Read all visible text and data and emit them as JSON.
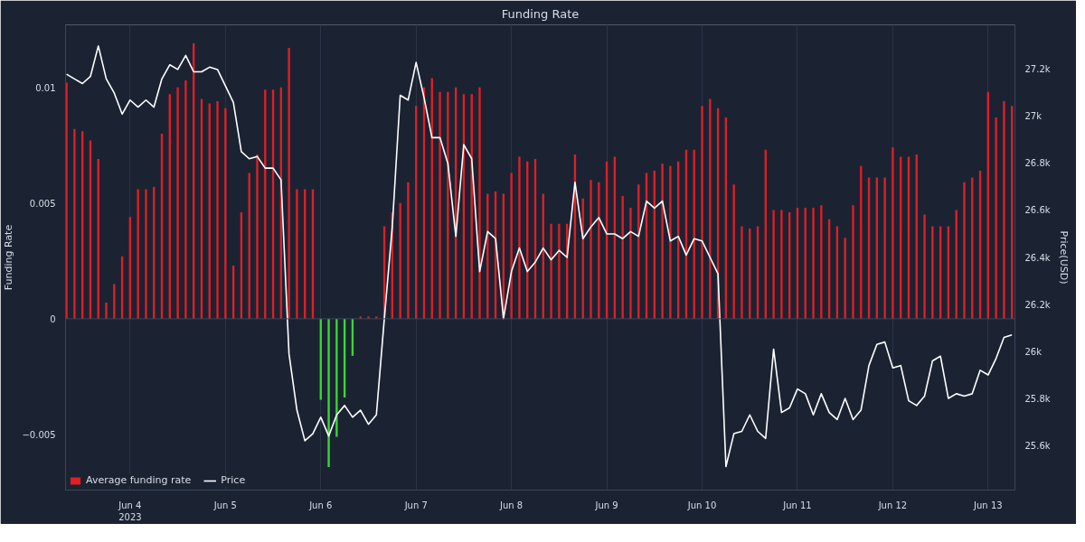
{
  "chart_data": {
    "type": "bar",
    "title": "Funding Rate",
    "ylabel": "Funding Rate",
    "y2label": "Price(USD)",
    "x": [
      "2023-06-03T08:00",
      "2023-06-03T10:00",
      "2023-06-03T12:00",
      "2023-06-03T14:00",
      "2023-06-03T16:00",
      "2023-06-03T18:00",
      "2023-06-03T20:00",
      "2023-06-03T22:00",
      "2023-06-04T00:00",
      "2023-06-04T02:00",
      "2023-06-04T04:00",
      "2023-06-04T06:00",
      "2023-06-04T08:00",
      "2023-06-04T10:00",
      "2023-06-04T12:00",
      "2023-06-04T14:00",
      "2023-06-04T16:00",
      "2023-06-04T18:00",
      "2023-06-04T20:00",
      "2023-06-04T22:00",
      "2023-06-05T00:00",
      "2023-06-05T02:00",
      "2023-06-05T04:00",
      "2023-06-05T06:00",
      "2023-06-05T08:00",
      "2023-06-05T10:00",
      "2023-06-05T12:00",
      "2023-06-05T14:00",
      "2023-06-05T16:00",
      "2023-06-05T18:00",
      "2023-06-05T20:00",
      "2023-06-05T22:00",
      "2023-06-06T00:00",
      "2023-06-06T02:00",
      "2023-06-06T04:00",
      "2023-06-06T06:00",
      "2023-06-06T08:00",
      "2023-06-06T10:00",
      "2023-06-06T12:00",
      "2023-06-06T14:00",
      "2023-06-06T16:00",
      "2023-06-06T18:00",
      "2023-06-06T20:00",
      "2023-06-06T22:00",
      "2023-06-07T00:00",
      "2023-06-07T02:00",
      "2023-06-07T04:00",
      "2023-06-07T06:00",
      "2023-06-07T08:00",
      "2023-06-07T10:00",
      "2023-06-07T12:00",
      "2023-06-07T14:00",
      "2023-06-07T16:00",
      "2023-06-07T18:00",
      "2023-06-07T20:00",
      "2023-06-07T22:00",
      "2023-06-08T00:00",
      "2023-06-08T02:00",
      "2023-06-08T04:00",
      "2023-06-08T06:00",
      "2023-06-08T08:00",
      "2023-06-08T10:00",
      "2023-06-08T12:00",
      "2023-06-08T14:00",
      "2023-06-08T16:00",
      "2023-06-08T18:00",
      "2023-06-08T20:00",
      "2023-06-08T22:00",
      "2023-06-09T00:00",
      "2023-06-09T02:00",
      "2023-06-09T04:00",
      "2023-06-09T06:00",
      "2023-06-09T08:00",
      "2023-06-09T10:00",
      "2023-06-09T12:00",
      "2023-06-09T14:00",
      "2023-06-09T16:00",
      "2023-06-09T18:00",
      "2023-06-09T20:00",
      "2023-06-09T22:00",
      "2023-06-10T00:00",
      "2023-06-10T02:00",
      "2023-06-10T04:00",
      "2023-06-10T06:00",
      "2023-06-10T08:00",
      "2023-06-10T10:00",
      "2023-06-10T12:00",
      "2023-06-10T14:00",
      "2023-06-10T16:00",
      "2023-06-10T18:00",
      "2023-06-10T20:00",
      "2023-06-10T22:00",
      "2023-06-11T00:00",
      "2023-06-11T02:00",
      "2023-06-11T04:00",
      "2023-06-11T06:00",
      "2023-06-11T08:00",
      "2023-06-11T10:00",
      "2023-06-11T12:00",
      "2023-06-11T14:00",
      "2023-06-11T16:00",
      "2023-06-11T18:00",
      "2023-06-11T20:00",
      "2023-06-11T22:00",
      "2023-06-12T00:00",
      "2023-06-12T02:00",
      "2023-06-12T04:00",
      "2023-06-12T06:00",
      "2023-06-12T08:00",
      "2023-06-12T10:00",
      "2023-06-12T12:00",
      "2023-06-12T14:00",
      "2023-06-12T16:00",
      "2023-06-12T18:00",
      "2023-06-12T20:00",
      "2023-06-12T22:00",
      "2023-06-13T00:00",
      "2023-06-13T02:00",
      "2023-06-13T04:00",
      "2023-06-13T06:00"
    ],
    "xlim": [
      "2023-06-03T07:45",
      "2023-06-13T06:45"
    ],
    "xticks": [
      {
        "value": "2023-06-04",
        "label": "Jun 4\n2023"
      },
      {
        "value": "2023-06-05",
        "label": "Jun 5"
      },
      {
        "value": "2023-06-06",
        "label": "Jun 6"
      },
      {
        "value": "2023-06-07",
        "label": "Jun 7"
      },
      {
        "value": "2023-06-08",
        "label": "Jun 8"
      },
      {
        "value": "2023-06-09",
        "label": "Jun 9"
      },
      {
        "value": "2023-06-10",
        "label": "Jun 10"
      },
      {
        "value": "2023-06-11",
        "label": "Jun 11"
      },
      {
        "value": "2023-06-12",
        "label": "Jun 12"
      },
      {
        "value": "2023-06-13",
        "label": "Jun 13"
      }
    ],
    "ylim": [
      -0.0074,
      0.0127
    ],
    "yticks": [
      {
        "value": -0.005,
        "label": "−0.005"
      },
      0,
      0.005,
      0.01
    ],
    "y2lim": [
      25410,
      27390
    ],
    "y2ticks": [
      {
        "value": 25600,
        "label": "25.6k"
      },
      {
        "value": 25800,
        "label": "25.8k"
      },
      {
        "value": 26000,
        "label": "26k"
      },
      {
        "value": 26200,
        "label": "26.2k"
      },
      {
        "value": 26400,
        "label": "26.4k"
      },
      {
        "value": 26600,
        "label": "26.6k"
      },
      {
        "value": 26800,
        "label": "26.8k"
      },
      {
        "value": 27000,
        "label": "27k"
      },
      {
        "value": 27200,
        "label": "27.2k"
      }
    ],
    "grid": "x",
    "legend": "bottom left",
    "ref_lines": [
      {
        "axis": "y",
        "value": 0,
        "color": "#3a4558"
      }
    ],
    "series": [
      {
        "name": "Average funding rate",
        "colors": [
          "#e01e24",
          "#e01e24",
          "#e01e24",
          "#e01e24",
          "#e01e24",
          "#e01e24",
          "#e01e24",
          "#e01e24",
          "#e01e24",
          "#e01e24",
          "#e01e24",
          "#e01e24",
          "#e01e24",
          "#e01e24",
          "#e01e24",
          "#e01e24",
          "#e01e24",
          "#e01e24",
          "#e01e24",
          "#e01e24",
          "#e01e24",
          "#e01e24",
          "#e01e24",
          "#e01e24",
          "#e01e24",
          "#e01e24",
          "#e01e24",
          "#e01e24",
          "#e01e24",
          "#e01e24",
          "#e01e24",
          "#e01e24",
          "#39d834",
          "#39d834",
          "#39d834",
          "#39d834",
          "#39d834",
          "#e01e24",
          "#e01e24",
          "#e01e24",
          "#e01e24",
          "#e01e24",
          "#e01e24",
          "#e01e24",
          "#e01e24",
          "#e01e24",
          "#e01e24",
          "#e01e24",
          "#e01e24",
          "#e01e24",
          "#e01e24",
          "#e01e24",
          "#e01e24",
          "#e01e24",
          "#e01e24",
          "#e01e24",
          "#e01e24",
          "#e01e24",
          "#e01e24",
          "#e01e24",
          "#e01e24",
          "#e01e24",
          "#e01e24",
          "#e01e24",
          "#e01e24",
          "#e01e24",
          "#e01e24",
          "#e01e24",
          "#e01e24",
          "#e01e24",
          "#e01e24",
          "#e01e24",
          "#e01e24",
          "#e01e24",
          "#e01e24",
          "#e01e24",
          "#e01e24",
          "#e01e24",
          "#e01e24",
          "#e01e24",
          "#e01e24",
          "#e01e24",
          "#e01e24",
          "#e01e24",
          "#e01e24",
          "#e01e24",
          "#e01e24",
          "#e01e24",
          "#e01e24",
          "#e01e24",
          "#e01e24",
          "#e01e24",
          "#e01e24",
          "#e01e24",
          "#e01e24",
          "#e01e24",
          "#e01e24",
          "#e01e24",
          "#e01e24",
          "#e01e24",
          "#e01e24",
          "#e01e24",
          "#e01e24",
          "#e01e24",
          "#e01e24",
          "#e01e24",
          "#e01e24",
          "#e01e24",
          "#e01e24",
          "#e01e24",
          "#e01e24",
          "#e01e24",
          "#e01e24",
          "#e01e24",
          "#e01e24",
          "#e01e24",
          "#e01e24",
          "#e01e24",
          "#e01e24",
          "#e01e24"
        ],
        "values": [
          0.0102,
          0.0082,
          0.0081,
          0.0077,
          0.0069,
          0.0007,
          0.0015,
          0.0027,
          0.0044,
          0.0056,
          0.0056,
          0.0057,
          0.008,
          0.0097,
          0.01,
          0.0103,
          0.0119,
          0.0095,
          0.0093,
          0.0094,
          0.0091,
          0.0023,
          0.0046,
          0.0063,
          0.0071,
          0.0099,
          0.0099,
          0.01,
          0.0117,
          0.0056,
          0.0056,
          0.0056,
          -0.0035,
          -0.0064,
          -0.0051,
          -0.0034,
          -0.0016,
          0.0001,
          0.0001,
          0.0001,
          0.004,
          0.0046,
          0.005,
          0.0059,
          0.0092,
          0.01,
          0.0104,
          0.0098,
          0.0098,
          0.01,
          0.0097,
          0.0097,
          0.01,
          0.0054,
          0.0055,
          0.0054,
          0.0063,
          0.007,
          0.0068,
          0.0069,
          0.0054,
          0.0041,
          0.0041,
          0.0041,
          0.0071,
          0.0052,
          0.006,
          0.0059,
          0.0068,
          0.007,
          0.0053,
          0.0048,
          0.0058,
          0.0063,
          0.0064,
          0.0067,
          0.0066,
          0.0068,
          0.0073,
          0.0073,
          0.0092,
          0.0095,
          0.0091,
          0.0087,
          0.0058,
          0.004,
          0.0039,
          0.004,
          0.0073,
          0.0047,
          0.0047,
          0.0046,
          0.0048,
          0.0048,
          0.0048,
          0.0049,
          0.0043,
          0.004,
          0.0035,
          0.0049,
          0.0066,
          0.0061,
          0.0061,
          0.0061,
          0.0074,
          0.007,
          0.007,
          0.0071,
          0.0045,
          0.004,
          0.004,
          0.004,
          0.0047,
          0.0059,
          0.0061,
          0.0064,
          0.0098,
          0.0087,
          0.0094,
          0.0092
        ]
      },
      {
        "name": "Price",
        "type": "line",
        "axis": "y2",
        "color": "#ffffff",
        "marker": "none",
        "line_style": "solid",
        "values": [
          27180,
          27160,
          27140,
          27170,
          27300,
          27160,
          27100,
          27010,
          27070,
          27040,
          27070,
          27040,
          27160,
          27220,
          27200,
          27260,
          27190,
          27190,
          27210,
          27200,
          27130,
          27060,
          26850,
          26820,
          26830,
          26780,
          26780,
          26730,
          25990,
          25750,
          25620,
          25650,
          25720,
          25640,
          25730,
          25770,
          25720,
          25750,
          25690,
          25730,
          26140,
          26530,
          27090,
          27070,
          27230,
          27080,
          26910,
          26910,
          26800,
          26490,
          26880,
          26820,
          26340,
          26510,
          26480,
          26140,
          26340,
          26440,
          26340,
          26380,
          26440,
          26390,
          26430,
          26400,
          26720,
          26480,
          26530,
          26570,
          26500,
          26500,
          26480,
          26510,
          26490,
          26640,
          26610,
          26640,
          26470,
          26490,
          26410,
          26480,
          26470,
          26400,
          26330,
          25510,
          25650,
          25660,
          25730,
          25660,
          25630,
          26010,
          25740,
          25760,
          25840,
          25820,
          25730,
          25820,
          25740,
          25710,
          25800,
          25710,
          25750,
          25940,
          26030,
          26040,
          25930,
          25940,
          25790,
          25770,
          25810,
          25960,
          25980,
          25800,
          25820,
          25810,
          25820,
          25920,
          25900,
          25970,
          26060,
          26070
        ]
      }
    ]
  }
}
